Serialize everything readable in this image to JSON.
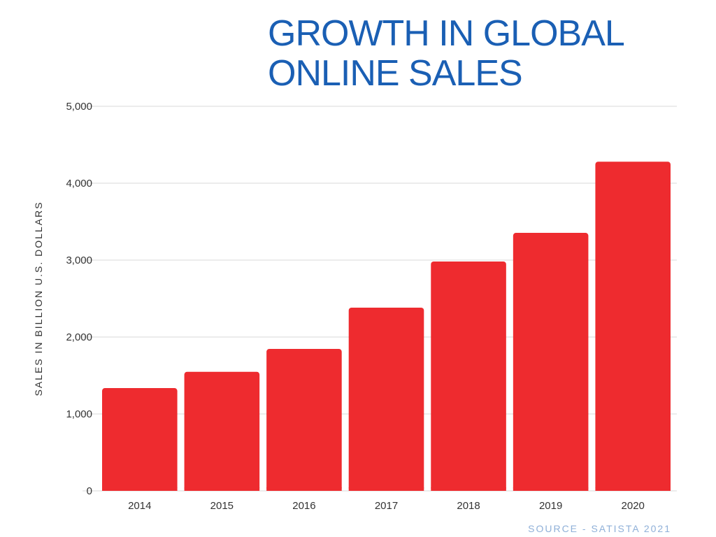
{
  "chart_data": {
    "type": "bar",
    "title_lines": [
      "GROWTH IN GLOBAL",
      "ONLINE SALES"
    ],
    "xlabel": "",
    "ylabel": "SALES IN BILLION U.S. DOLLARS",
    "categories": [
      "2014",
      "2015",
      "2016",
      "2017",
      "2018",
      "2019",
      "2020"
    ],
    "values": [
      1336,
      1548,
      1845,
      2382,
      2982,
      3354,
      4280
    ],
    "ylim": [
      0,
      5000
    ],
    "yticks": [
      0,
      1000,
      2000,
      3000,
      4000,
      5000
    ],
    "ytick_labels": [
      "0",
      "1,000",
      "2,000",
      "3,000",
      "4,000",
      "5,000"
    ],
    "grid": true,
    "legend": "none",
    "bar_color": "#ee2b2f",
    "source": "SOURCE - SATISTA 2021"
  }
}
